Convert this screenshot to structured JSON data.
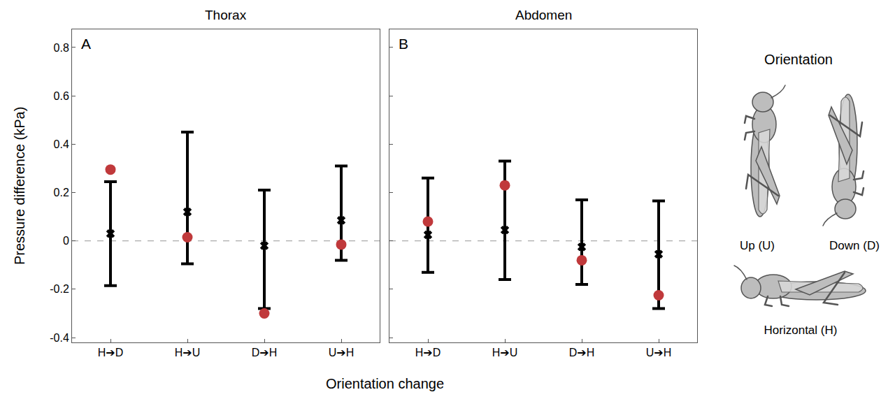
{
  "figure": {
    "x_label": "Orientation change",
    "y_label": "Pressure difference (kPa)"
  },
  "chart_data": [
    {
      "type": "scatter",
      "title": "Thorax",
      "panel": "A",
      "categories": [
        "H➔D",
        "H➔U",
        "D➔H",
        "U➔H"
      ],
      "ylim": [
        -0.42,
        0.875
      ],
      "yticks": [
        -0.4,
        -0.2,
        0,
        0.2,
        0.4,
        0.6,
        0.8
      ],
      "series": [
        {
          "color": "#000000",
          "marker": "x",
          "values": [
            0.03,
            0.12,
            -0.02,
            0.085
          ],
          "error_plus": [
            0.215,
            0.33,
            0.23,
            0.225
          ],
          "error_minus": [
            0.215,
            0.215,
            0.26,
            0.165
          ]
        },
        {
          "color": "#c0393b",
          "marker": "circle",
          "values": [
            0.295,
            0.015,
            -0.3,
            -0.015
          ]
        }
      ]
    },
    {
      "type": "scatter",
      "title": "Abdomen",
      "panel": "B",
      "categories": [
        "H➔D",
        "H➔U",
        "D➔H",
        "U➔H"
      ],
      "ylim": [
        -0.42,
        0.875
      ],
      "yticks": [
        -0.4,
        -0.2,
        0,
        0.2,
        0.4,
        0.6,
        0.8
      ],
      "tick_labels": "x",
      "series": [
        {
          "color": "#000000",
          "marker": "x",
          "values": [
            0.025,
            0.045,
            -0.025,
            -0.055
          ],
          "error_plus": [
            0.235,
            0.285,
            0.195,
            0.22
          ],
          "error_minus": [
            0.155,
            0.205,
            0.155,
            0.225
          ]
        },
        {
          "color": "#c0393b",
          "marker": "circle",
          "values": [
            0.08,
            0.23,
            -0.08,
            -0.225
          ]
        }
      ]
    }
  ],
  "orientation_key": {
    "title": "Orientation",
    "up": "Up (U)",
    "down": "Down (D)",
    "horizontal": "Horizontal (H)"
  }
}
